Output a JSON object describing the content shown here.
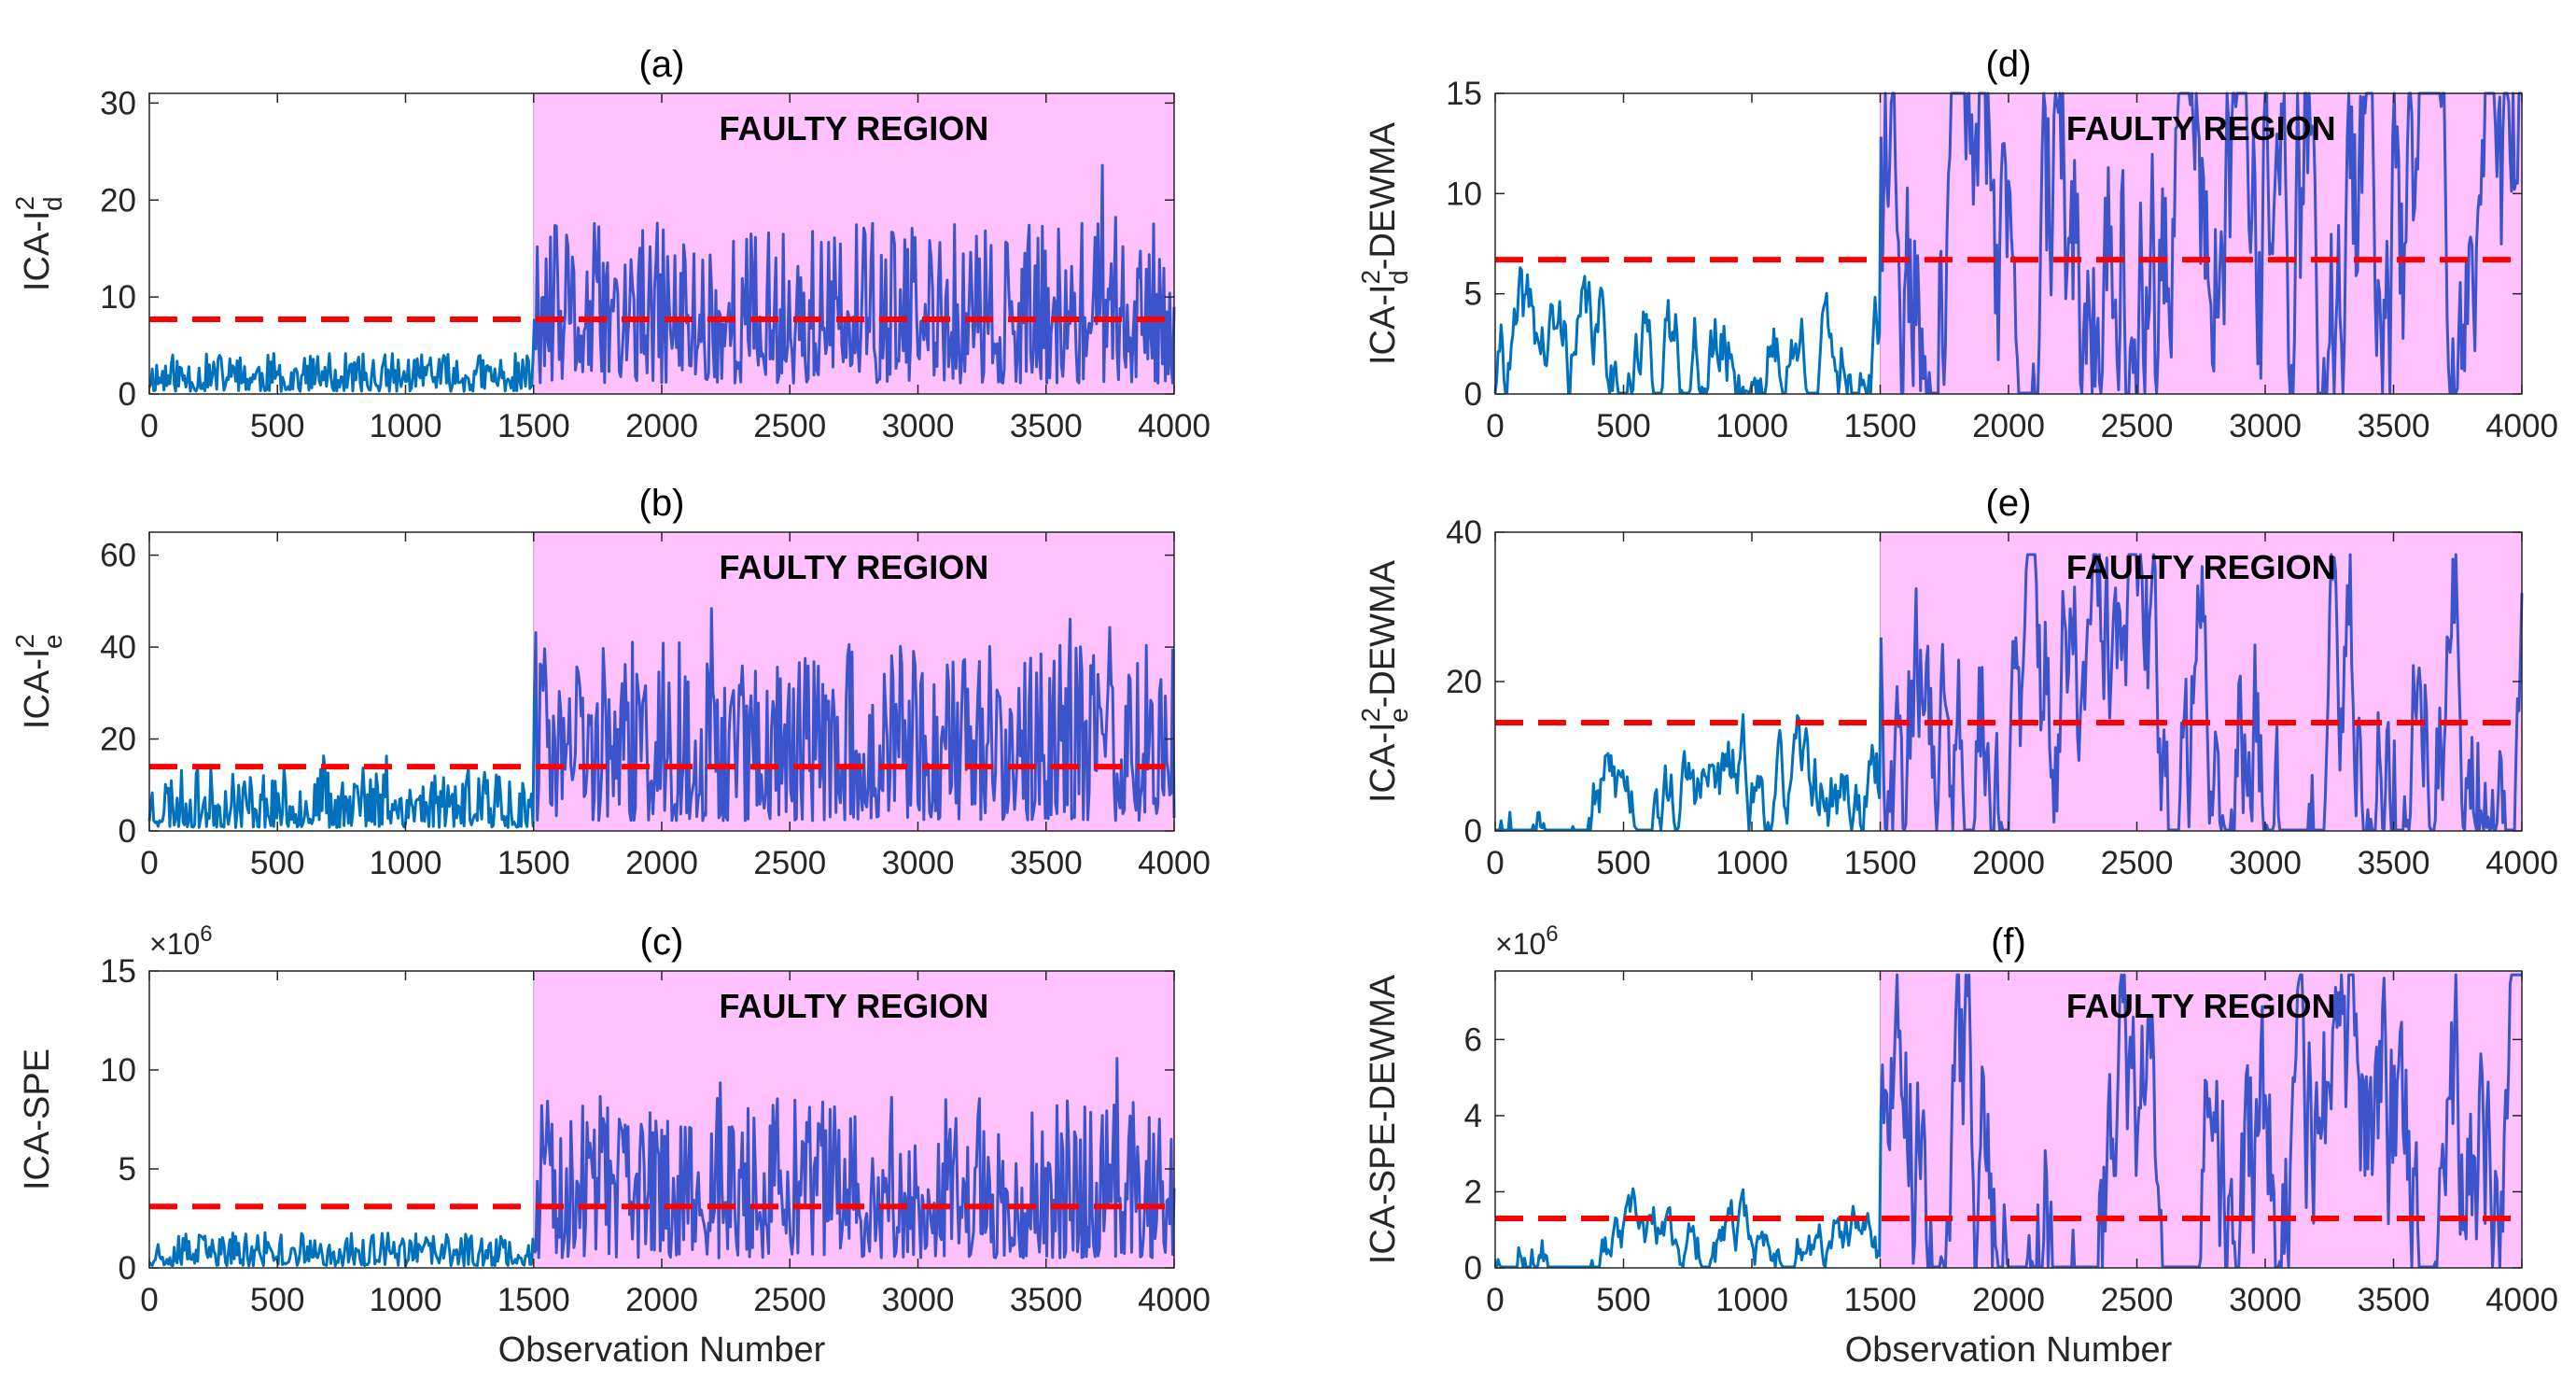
{
  "figure": {
    "x_axis_label": "Observation Number",
    "fault_label": "FAULTY REGION",
    "colors": {
      "fault_fill": "#ffc2ff",
      "normal_line": "#0072BD",
      "fault_line": "#3b54cc",
      "threshold": "#ff0000",
      "axis": "#262626"
    }
  },
  "chart_data": [
    {
      "id": "a",
      "type": "line",
      "title": "(a)",
      "ylabel": "ICA-I²d",
      "ylabel_base": "ICA-I",
      "ylabel_sup": "2",
      "ylabel_sub": "d",
      "ylabel_suffix": "",
      "exponent": "",
      "xlim": [
        0,
        4000
      ],
      "ylim": [
        0,
        31
      ],
      "xticks": [
        "0",
        "500",
        "1000",
        "1500",
        "2000",
        "2500",
        "3000",
        "3500",
        "4000"
      ],
      "yticks": [
        "0",
        "10",
        "20",
        "30"
      ],
      "ytick_values": [
        0,
        10,
        20,
        30
      ],
      "fault_start": 1500,
      "threshold": 7.7,
      "signal": {
        "kind": "noise",
        "normal_level": 1.8,
        "fault_level": 7.5,
        "spread": 2.2,
        "peak": 31,
        "seed": 11
      }
    },
    {
      "id": "b",
      "type": "line",
      "title": "(b)",
      "ylabel": "ICA-I²e",
      "ylabel_base": "ICA-I",
      "ylabel_sup": "2",
      "ylabel_sub": "e",
      "ylabel_suffix": "",
      "exponent": "",
      "xlim": [
        0,
        4000
      ],
      "ylim": [
        0,
        65
      ],
      "xticks": [
        "0",
        "500",
        "1000",
        "1500",
        "2000",
        "2500",
        "3000",
        "3500",
        "4000"
      ],
      "yticks": [
        "0",
        "20",
        "40",
        "60"
      ],
      "ytick_values": [
        0,
        20,
        40,
        60
      ],
      "fault_start": 1500,
      "threshold": 14,
      "signal": {
        "kind": "noise",
        "normal_level": 5,
        "fault_level": 15,
        "spread": 2.6,
        "peak": 64,
        "seed": 23
      }
    },
    {
      "id": "c",
      "type": "line",
      "title": "(c)",
      "ylabel": "ICA-SPE",
      "ylabel_base": "ICA-SPE",
      "ylabel_sup": "",
      "ylabel_sub": "",
      "ylabel_suffix": "",
      "exponent": "×10⁶",
      "exponent_base": "×10",
      "exponent_pow": "6",
      "xlim": [
        0,
        4000
      ],
      "ylim": [
        0,
        15
      ],
      "xticks": [
        "0",
        "500",
        "1000",
        "1500",
        "2000",
        "2500",
        "3000",
        "3500",
        "4000"
      ],
      "yticks": [
        "0",
        "5",
        "10",
        "15"
      ],
      "ytick_values": [
        0,
        5,
        10,
        15
      ],
      "fault_start": 1500,
      "threshold": 3.1,
      "signal": {
        "kind": "noise",
        "normal_level": 0.7,
        "fault_level": 3.4,
        "spread": 2.4,
        "peak": 13,
        "seed": 37
      }
    },
    {
      "id": "d",
      "type": "line",
      "title": "(d)",
      "ylabel": "ICA-I²d-DEWMA",
      "ylabel_base": "ICA-I",
      "ylabel_sup": "2",
      "ylabel_sub": "d",
      "ylabel_suffix": "-DEWMA",
      "exponent": "",
      "xlim": [
        0,
        4000
      ],
      "ylim": [
        0,
        15
      ],
      "xticks": [
        "0",
        "500",
        "1000",
        "1500",
        "2000",
        "2500",
        "3000",
        "3500",
        "4000"
      ],
      "yticks": [
        "0",
        "5",
        "10",
        "15"
      ],
      "ytick_values": [
        0,
        5,
        10,
        15
      ],
      "fault_start": 1500,
      "threshold": 6.7,
      "signal": {
        "kind": "smooth",
        "normal_level": 2.0,
        "fault_level": 7.5,
        "spread": 1.6,
        "peak": 15,
        "seed": 41
      }
    },
    {
      "id": "e",
      "type": "line",
      "title": "(e)",
      "ylabel": "ICA-I²e-DEWMA",
      "ylabel_base": "ICA-I",
      "ylabel_sup": "2",
      "ylabel_sub": "e",
      "ylabel_suffix": "-DEWMA",
      "exponent": "",
      "xlim": [
        0,
        4000
      ],
      "ylim": [
        0,
        40
      ],
      "xticks": [
        "0",
        "500",
        "1000",
        "1500",
        "2000",
        "2500",
        "3000",
        "3500",
        "4000"
      ],
      "yticks": [
        "0",
        "20",
        "40"
      ],
      "ytick_values": [
        0,
        20,
        40
      ],
      "fault_start": 1500,
      "threshold": 14.5,
      "signal": {
        "kind": "smooth",
        "normal_level": 4.5,
        "fault_level": 14,
        "spread": 1.7,
        "peak": 37,
        "seed": 53
      }
    },
    {
      "id": "f",
      "type": "line",
      "title": "(f)",
      "ylabel": "ICA-SPE-DEWMA",
      "ylabel_base": "ICA-SPE-DEWMA",
      "ylabel_sup": "",
      "ylabel_sub": "",
      "ylabel_suffix": "",
      "exponent": "×10⁶",
      "exponent_base": "×10",
      "exponent_pow": "6",
      "xlim": [
        0,
        4000
      ],
      "ylim": [
        0,
        7.8
      ],
      "xticks": [
        "0",
        "500",
        "1000",
        "1500",
        "2000",
        "2500",
        "3000",
        "3500",
        "4000"
      ],
      "yticks": [
        "0",
        "2",
        "4",
        "6"
      ],
      "ytick_values": [
        0,
        2,
        4,
        6
      ],
      "fault_start": 1500,
      "threshold": 1.3,
      "signal": {
        "kind": "smooth",
        "normal_level": 0.55,
        "fault_level": 2.9,
        "spread": 1.7,
        "peak": 7.7,
        "seed": 67
      }
    }
  ]
}
